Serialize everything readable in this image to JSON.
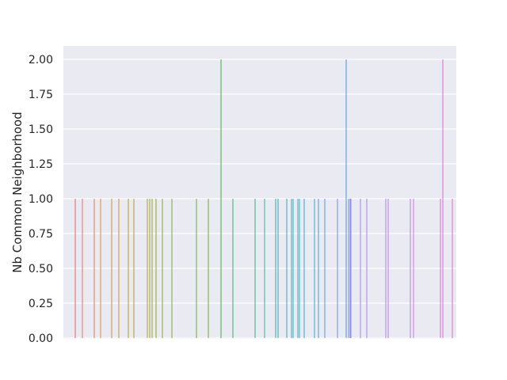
{
  "chart_data": {
    "type": "bar",
    "title": "",
    "xlabel": "",
    "ylabel": "Nb Common Neighborhood",
    "ylim": [
      0,
      2
    ],
    "yticks": [
      "0.00",
      "0.25",
      "0.50",
      "0.75",
      "1.00",
      "1.25",
      "1.50",
      "1.75",
      "2.00"
    ],
    "grid": true,
    "legend": "none",
    "background": "#EAEAF2",
    "values": [
      1,
      1,
      1,
      1,
      1,
      1,
      1,
      1,
      1,
      1,
      1,
      1,
      1,
      1,
      1,
      1,
      2,
      1,
      1,
      1,
      1,
      1,
      1,
      1,
      1,
      1,
      1,
      1,
      1,
      1,
      1,
      1,
      2,
      1,
      1,
      1,
      1,
      1,
      1,
      1,
      1,
      1,
      1,
      2,
      1,
      1,
      1,
      1,
      1,
      1
    ],
    "colors": [
      "#e8615d",
      "#e6716a",
      "#e07a4e",
      "#d98a3a",
      "#cf8e3a",
      "#c6952f",
      "#bb9a2f",
      "#ad9d2f",
      "#a6a02c",
      "#9ea22f",
      "#96a52f",
      "#8ea72f",
      "#88a82f",
      "#7fa932",
      "#78aa34",
      "#6fac36",
      "#4aaa45",
      "#3daf6a",
      "#3bb080",
      "#3ab38e",
      "#3aa5a7",
      "#38a7ae",
      "#38a9b4",
      "#3aabb8",
      "#38acbd",
      "#3aacc1",
      "#3badc5",
      "#3aa6c8",
      "#3da0d2",
      "#4a9ad8",
      "#5b94dc",
      "#6a8fdd",
      "#4d92d8",
      "#6d8fe0",
      "#8c8ce3",
      "#9a89e4",
      "#a487e4",
      "#a683e5",
      "#ad81e4",
      "#b57ee4",
      "#bd7be3",
      "#c778e0",
      "#d36fd8",
      "#db6ccf",
      "#e068c6",
      "#e466bd",
      "#e56496",
      "#e66287",
      "#e75f7a",
      "#e85c6e"
    ]
  }
}
